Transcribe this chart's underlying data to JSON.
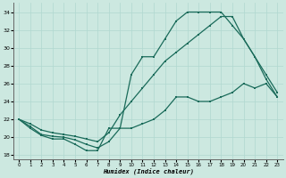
{
  "xlabel": "Humidex (Indice chaleur)",
  "background_color": "#cce8e0",
  "line_color": "#1a6b5a",
  "xlim": [
    -0.5,
    23.5
  ],
  "ylim": [
    17.5,
    35.0
  ],
  "xticks": [
    0,
    1,
    2,
    3,
    4,
    5,
    6,
    7,
    8,
    9,
    10,
    11,
    12,
    13,
    14,
    15,
    16,
    17,
    18,
    19,
    20,
    21,
    22,
    23
  ],
  "yticks": [
    18,
    20,
    22,
    24,
    26,
    28,
    30,
    32,
    34
  ],
  "line1_x": [
    0,
    1,
    2,
    3,
    4,
    5,
    6,
    7,
    8,
    9,
    10,
    11,
    12,
    13,
    14,
    15,
    16,
    17,
    18,
    19,
    20,
    21,
    22,
    23
  ],
  "line1_y": [
    22,
    21,
    20.2,
    19.8,
    19.8,
    19.2,
    18.5,
    18.5,
    21.0,
    21.0,
    21.0,
    21.5,
    22.0,
    23.0,
    24.5,
    24.5,
    24.0,
    24.0,
    24.5,
    25.0,
    26.0,
    25.5,
    26.0,
    24.5
  ],
  "line2_x": [
    0,
    1,
    2,
    3,
    4,
    5,
    6,
    7,
    8,
    9,
    10,
    11,
    12,
    13,
    14,
    15,
    16,
    17,
    18,
    19,
    20,
    21,
    22,
    23
  ],
  "line2_y": [
    22,
    21.2,
    20.3,
    20.1,
    20.0,
    19.7,
    19.2,
    18.8,
    19.5,
    21.0,
    27.0,
    29.0,
    29.0,
    31.0,
    33.0,
    34.0,
    34.0,
    34.0,
    34.0,
    32.5,
    31.0,
    29.0,
    26.5,
    24.5
  ],
  "line3_x": [
    0,
    1,
    2,
    3,
    4,
    5,
    6,
    7,
    8,
    9,
    10,
    11,
    12,
    13,
    14,
    15,
    16,
    17,
    18,
    19,
    20,
    21,
    22,
    23
  ],
  "line3_y": [
    22,
    21.5,
    20.8,
    20.5,
    20.3,
    20.1,
    19.8,
    19.5,
    20.5,
    22.5,
    24.0,
    25.5,
    27.0,
    28.5,
    29.5,
    30.5,
    31.5,
    32.5,
    33.5,
    33.5,
    31.0,
    29.0,
    27.0,
    25.0
  ]
}
